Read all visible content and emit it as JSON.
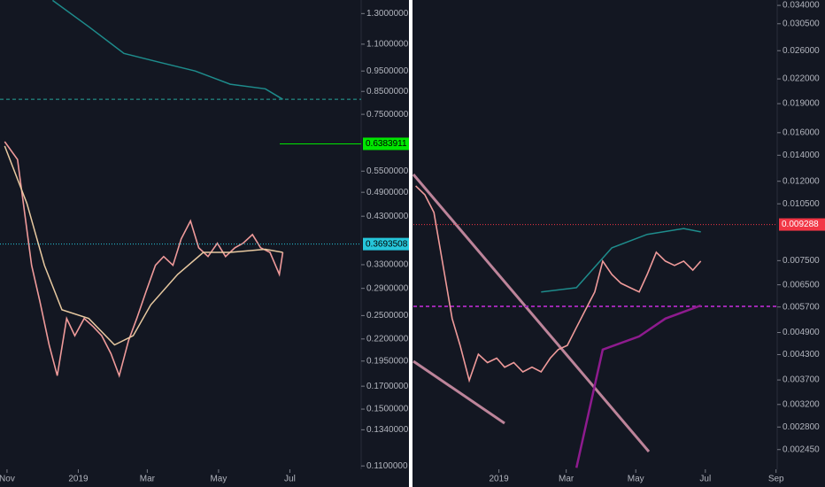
{
  "chart_data": [
    {
      "type": "line",
      "log_scale": true,
      "ylim": [
        0.108,
        1.4
      ],
      "yticks": [
        {
          "value": 1.3,
          "label": "1.3000000"
        },
        {
          "value": 1.1,
          "label": "1.1000000"
        },
        {
          "value": 0.95,
          "label": "0.9500000"
        },
        {
          "value": 0.85,
          "label": "0.8500000"
        },
        {
          "value": 0.75,
          "label": "0.7500000"
        },
        {
          "value": 0.55,
          "label": "0.5500000"
        },
        {
          "value": 0.49,
          "label": "0.4900000"
        },
        {
          "value": 0.43,
          "label": "0.4300000"
        },
        {
          "value": 0.33,
          "label": "0.3300000"
        },
        {
          "value": 0.29,
          "label": "0.2900000"
        },
        {
          "value": 0.25,
          "label": "0.2500000"
        },
        {
          "value": 0.22,
          "label": "0.2200000"
        },
        {
          "value": 0.195,
          "label": "0.1950000"
        },
        {
          "value": 0.17,
          "label": "0.1700000"
        },
        {
          "value": 0.15,
          "label": "0.1500000"
        },
        {
          "value": 0.134,
          "label": "0.1340000"
        },
        {
          "value": 0.11,
          "label": "0.1100000"
        }
      ],
      "xlim": [
        -6,
        303
      ],
      "xticks": [
        {
          "value": 0,
          "label": "Nov"
        },
        {
          "value": 61,
          "label": "2019"
        },
        {
          "value": 120,
          "label": "Mar"
        },
        {
          "value": 181,
          "label": "May"
        },
        {
          "value": 242,
          "label": "Jul"
        }
      ],
      "series": [
        {
          "color": "#ef9a9a",
          "width": 1.6,
          "x": [
            -2,
            9,
            21,
            28,
            36,
            43,
            51,
            58,
            66,
            74,
            81,
            89,
            96,
            104,
            111,
            119,
            127,
            134,
            142,
            149,
            157,
            164,
            172,
            180,
            187,
            195,
            202,
            210,
            217,
            225,
            233,
            236
          ],
          "values": [
            0.646,
            0.586,
            0.329,
            0.271,
            0.213,
            0.18,
            0.246,
            0.224,
            0.246,
            0.235,
            0.224,
            0.203,
            0.18,
            0.218,
            0.246,
            0.285,
            0.329,
            0.345,
            0.329,
            0.38,
            0.419,
            0.362,
            0.345,
            0.371,
            0.345,
            0.362,
            0.371,
            0.389,
            0.362,
            0.353,
            0.313,
            0.353
          ]
        },
        {
          "color": "#e8c9a0",
          "width": 1.5,
          "x": [
            -2,
            17,
            32,
            47,
            70,
            92,
            108,
            123,
            146,
            168,
            191,
            221,
            236
          ],
          "values": [
            0.631,
            0.461,
            0.329,
            0.258,
            0.246,
            0.213,
            0.224,
            0.265,
            0.313,
            0.353,
            0.353,
            0.359,
            0.353
          ]
        },
        {
          "color": "#1e8c8c",
          "width": 1.5,
          "x": [
            39,
            70,
            100,
            130,
            161,
            191,
            221,
            236
          ],
          "values": [
            1.397,
            1.21,
            1.046,
            0.997,
            0.95,
            0.884,
            0.862,
            0.814
          ]
        }
      ],
      "price_lines": [
        {
          "value": 0.6383911,
          "color": "#00e600",
          "style": "solid"
        },
        {
          "value": 0.3693508,
          "color": "#26c6da",
          "style": "dotted"
        }
      ],
      "ref_lines": [
        {
          "value": 0.814,
          "color": "#26a69a",
          "style": "dashed"
        }
      ]
    },
    {
      "type": "line",
      "log_scale": true,
      "ylim": [
        0.00218,
        0.0351
      ],
      "yticks": [
        {
          "value": 0.034,
          "label": "0.034000"
        },
        {
          "value": 0.0305,
          "label": "0.030500"
        },
        {
          "value": 0.026,
          "label": "0.026000"
        },
        {
          "value": 0.022,
          "label": "0.022000"
        },
        {
          "value": 0.019,
          "label": "0.019000"
        },
        {
          "value": 0.016,
          "label": "0.016000"
        },
        {
          "value": 0.014,
          "label": "0.014000"
        },
        {
          "value": 0.012,
          "label": "0.012000"
        },
        {
          "value": 0.0105,
          "label": "0.010500"
        },
        {
          "value": 0.0075,
          "label": "0.007500"
        },
        {
          "value": 0.0065,
          "label": "0.006500"
        },
        {
          "value": 0.0057,
          "label": "0.005700"
        },
        {
          "value": 0.0049,
          "label": "0.004900"
        },
        {
          "value": 0.0043,
          "label": "0.004300"
        },
        {
          "value": 0.0037,
          "label": "0.003700"
        },
        {
          "value": 0.0032,
          "label": "0.003200"
        },
        {
          "value": 0.0028,
          "label": "0.002800"
        },
        {
          "value": 0.00245,
          "label": "0.002450"
        }
      ],
      "xlim": [
        -14,
        305
      ],
      "xticks": [
        {
          "value": 61,
          "label": "2019"
        },
        {
          "value": 120,
          "label": "Mar"
        },
        {
          "value": 181,
          "label": "May"
        },
        {
          "value": 242,
          "label": "Jul"
        },
        {
          "value": 304,
          "label": "Sep"
        }
      ],
      "series": [
        {
          "color": "#ef9a9a",
          "width": 1.6,
          "x": [
            -12,
            -4,
            4,
            12,
            20,
            27,
            35,
            43,
            51,
            59,
            66,
            74,
            82,
            90,
            98,
            106,
            113,
            121,
            129,
            137,
            145,
            152,
            160,
            168,
            176,
            184,
            191,
            199,
            207,
            215,
            223,
            231,
            238
          ],
          "values": [
            0.01168,
            0.01108,
            0.00998,
            0.00729,
            0.00532,
            0.00454,
            0.00369,
            0.00431,
            0.0041,
            0.00421,
            0.00399,
            0.0041,
            0.00388,
            0.00399,
            0.00388,
            0.00421,
            0.00443,
            0.00454,
            0.00505,
            0.00561,
            0.00623,
            0.00748,
            0.00691,
            0.00656,
            0.00639,
            0.00623,
            0.00691,
            0.00788,
            0.00748,
            0.00729,
            0.00748,
            0.00709,
            0.00748
          ]
        },
        {
          "color": "#1e8c8c",
          "width": 1.5,
          "x": [
            98,
            129,
            160,
            191,
            223,
            238
          ],
          "values": [
            0.00623,
            0.00639,
            0.00809,
            0.00876,
            0.00907,
            0.00889
          ]
        },
        {
          "color": "#8e1b8e",
          "width": 2.5,
          "x": [
            129,
            152,
            184,
            207,
            238
          ],
          "values": [
            0.0022,
            0.00443,
            0.00479,
            0.00532,
            0.00575
          ]
        }
      ],
      "price_lines": [
        {
          "value": 0.009288,
          "color": "#f23645",
          "style": "dotted"
        }
      ],
      "ref_lines": [
        {
          "value": 0.00572,
          "color": "#9c27b0",
          "style": "dashed"
        }
      ]
    }
  ]
}
